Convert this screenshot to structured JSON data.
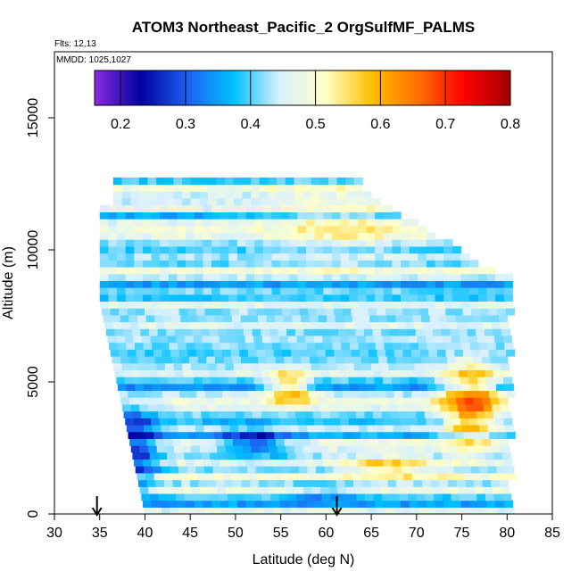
{
  "chart_data": {
    "type": "heatmap",
    "title": "ATOM3 Northeast_Pacific_2 OrgSulfMF_PALMS",
    "annotations": {
      "flights": "Flts: 12,13",
      "dates": "MMDD: 1025,1027"
    },
    "xlabel": "Latitude (deg N)",
    "ylabel": "Altitude (m)",
    "xlim": [
      30,
      85
    ],
    "ylim": [
      0,
      17500
    ],
    "xticks": [
      "30",
      "35",
      "40",
      "45",
      "50",
      "55",
      "60",
      "65",
      "70",
      "75",
      "80",
      "85"
    ],
    "yticks": [
      "0",
      "5000",
      "10000",
      "15000"
    ],
    "colorbar": {
      "range": [
        0.16,
        0.8
      ],
      "ticks": [
        "0.2",
        "0.3",
        "0.4",
        "0.5",
        "0.6",
        "0.7",
        "0.8"
      ],
      "colors": [
        "#8b2be2",
        "#0000a0",
        "#1e5ff0",
        "#00c0ff",
        "#d8f0ff",
        "#ffffc8",
        "#ffc000",
        "#ff7000",
        "#ff0000",
        "#a00000"
      ]
    },
    "value_range": [
      0.16,
      0.8
    ],
    "arrows_x": [
      34.7,
      61.2
    ],
    "grid": false,
    "legend": "colorbar-top"
  }
}
